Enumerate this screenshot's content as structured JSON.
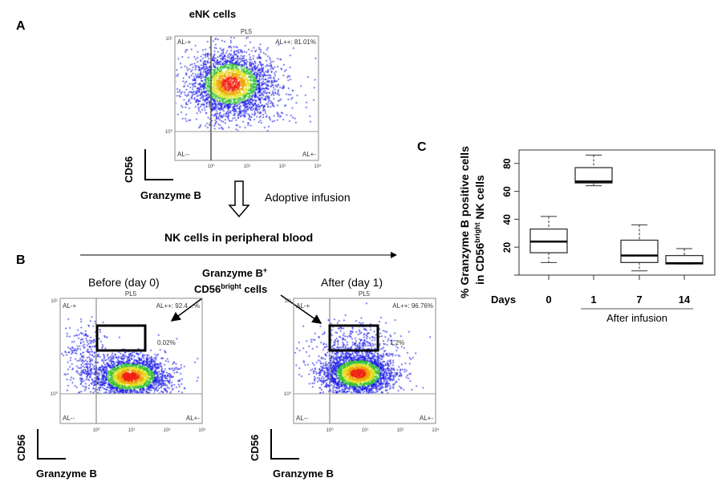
{
  "panel_labels": {
    "a": "A",
    "b": "B",
    "c": "C"
  },
  "panel_a": {
    "title": "eNK cells",
    "plot": {
      "header": "PL5",
      "q_ul": "AL-+",
      "q_ur": "AL++: 81.01%",
      "q_ll": "AL--",
      "q_lr": "AL+-",
      "y_ticks": [
        "10¹",
        "10⁰"
      ],
      "x_ticks": [
        "10⁰",
        "10¹",
        "10²",
        "10⁴"
      ]
    },
    "y_axis": "CD56",
    "x_axis": "Granzyme B"
  },
  "infusion": {
    "label": "Adoptive infusion",
    "subtitle": "NK cells in peripheral blood"
  },
  "panel_b": {
    "callout_line1": "Granzyme B",
    "callout_sup1": "+",
    "callout_line2a": "CD56",
    "callout_sup2": "bright",
    "callout_line2b": " cells",
    "before": {
      "title": "Before (day 0)",
      "header": "PL5",
      "q_ul": "AL-+",
      "q_ur": "AL++: 92.4…%",
      "q_ll": "AL--",
      "q_lr": "AL+-",
      "gate_pct": "0.02%"
    },
    "after": {
      "title": "After (day 1)",
      "header": "PL5",
      "q_ul": "AL-+",
      "q_ur": "AL++: 96.76%",
      "q_ll": "AL--",
      "q_lr": "AL+-",
      "gate_pct": "1.2%"
    },
    "x_ticks": [
      "10⁰",
      "10¹",
      "10²",
      "10⁴"
    ],
    "y_ticks": [
      "10¹",
      "10⁰"
    ],
    "y_axis": "CD56",
    "x_axis": "Granzyme B"
  },
  "chart_data": {
    "type": "box",
    "ylabel_line1": "% Granzyme B positive cells",
    "ylabel_line2a": "in CD56",
    "ylabel_sup": "bright",
    "ylabel_line2b": " NK cells",
    "xlabel_prefix": "Days",
    "group_label": "After infusion",
    "categories": [
      "0",
      "1",
      "7",
      "14"
    ],
    "y_ticks": [
      "20",
      "40",
      "60",
      "80"
    ],
    "ylim": [
      0,
      85
    ],
    "boxes": [
      {
        "day": "0",
        "min": 9,
        "q1": 16,
        "median": 24,
        "q3": 33,
        "max": 42
      },
      {
        "day": "1",
        "min": 64,
        "q1": 66,
        "median": 67,
        "q3": 77,
        "max": 86
      },
      {
        "day": "7",
        "min": 3,
        "q1": 9,
        "median": 14,
        "q3": 25,
        "max": 36
      },
      {
        "day": "14",
        "min": 8,
        "q1": 8,
        "median": 8.5,
        "q3": 14,
        "max": 19
      }
    ]
  }
}
